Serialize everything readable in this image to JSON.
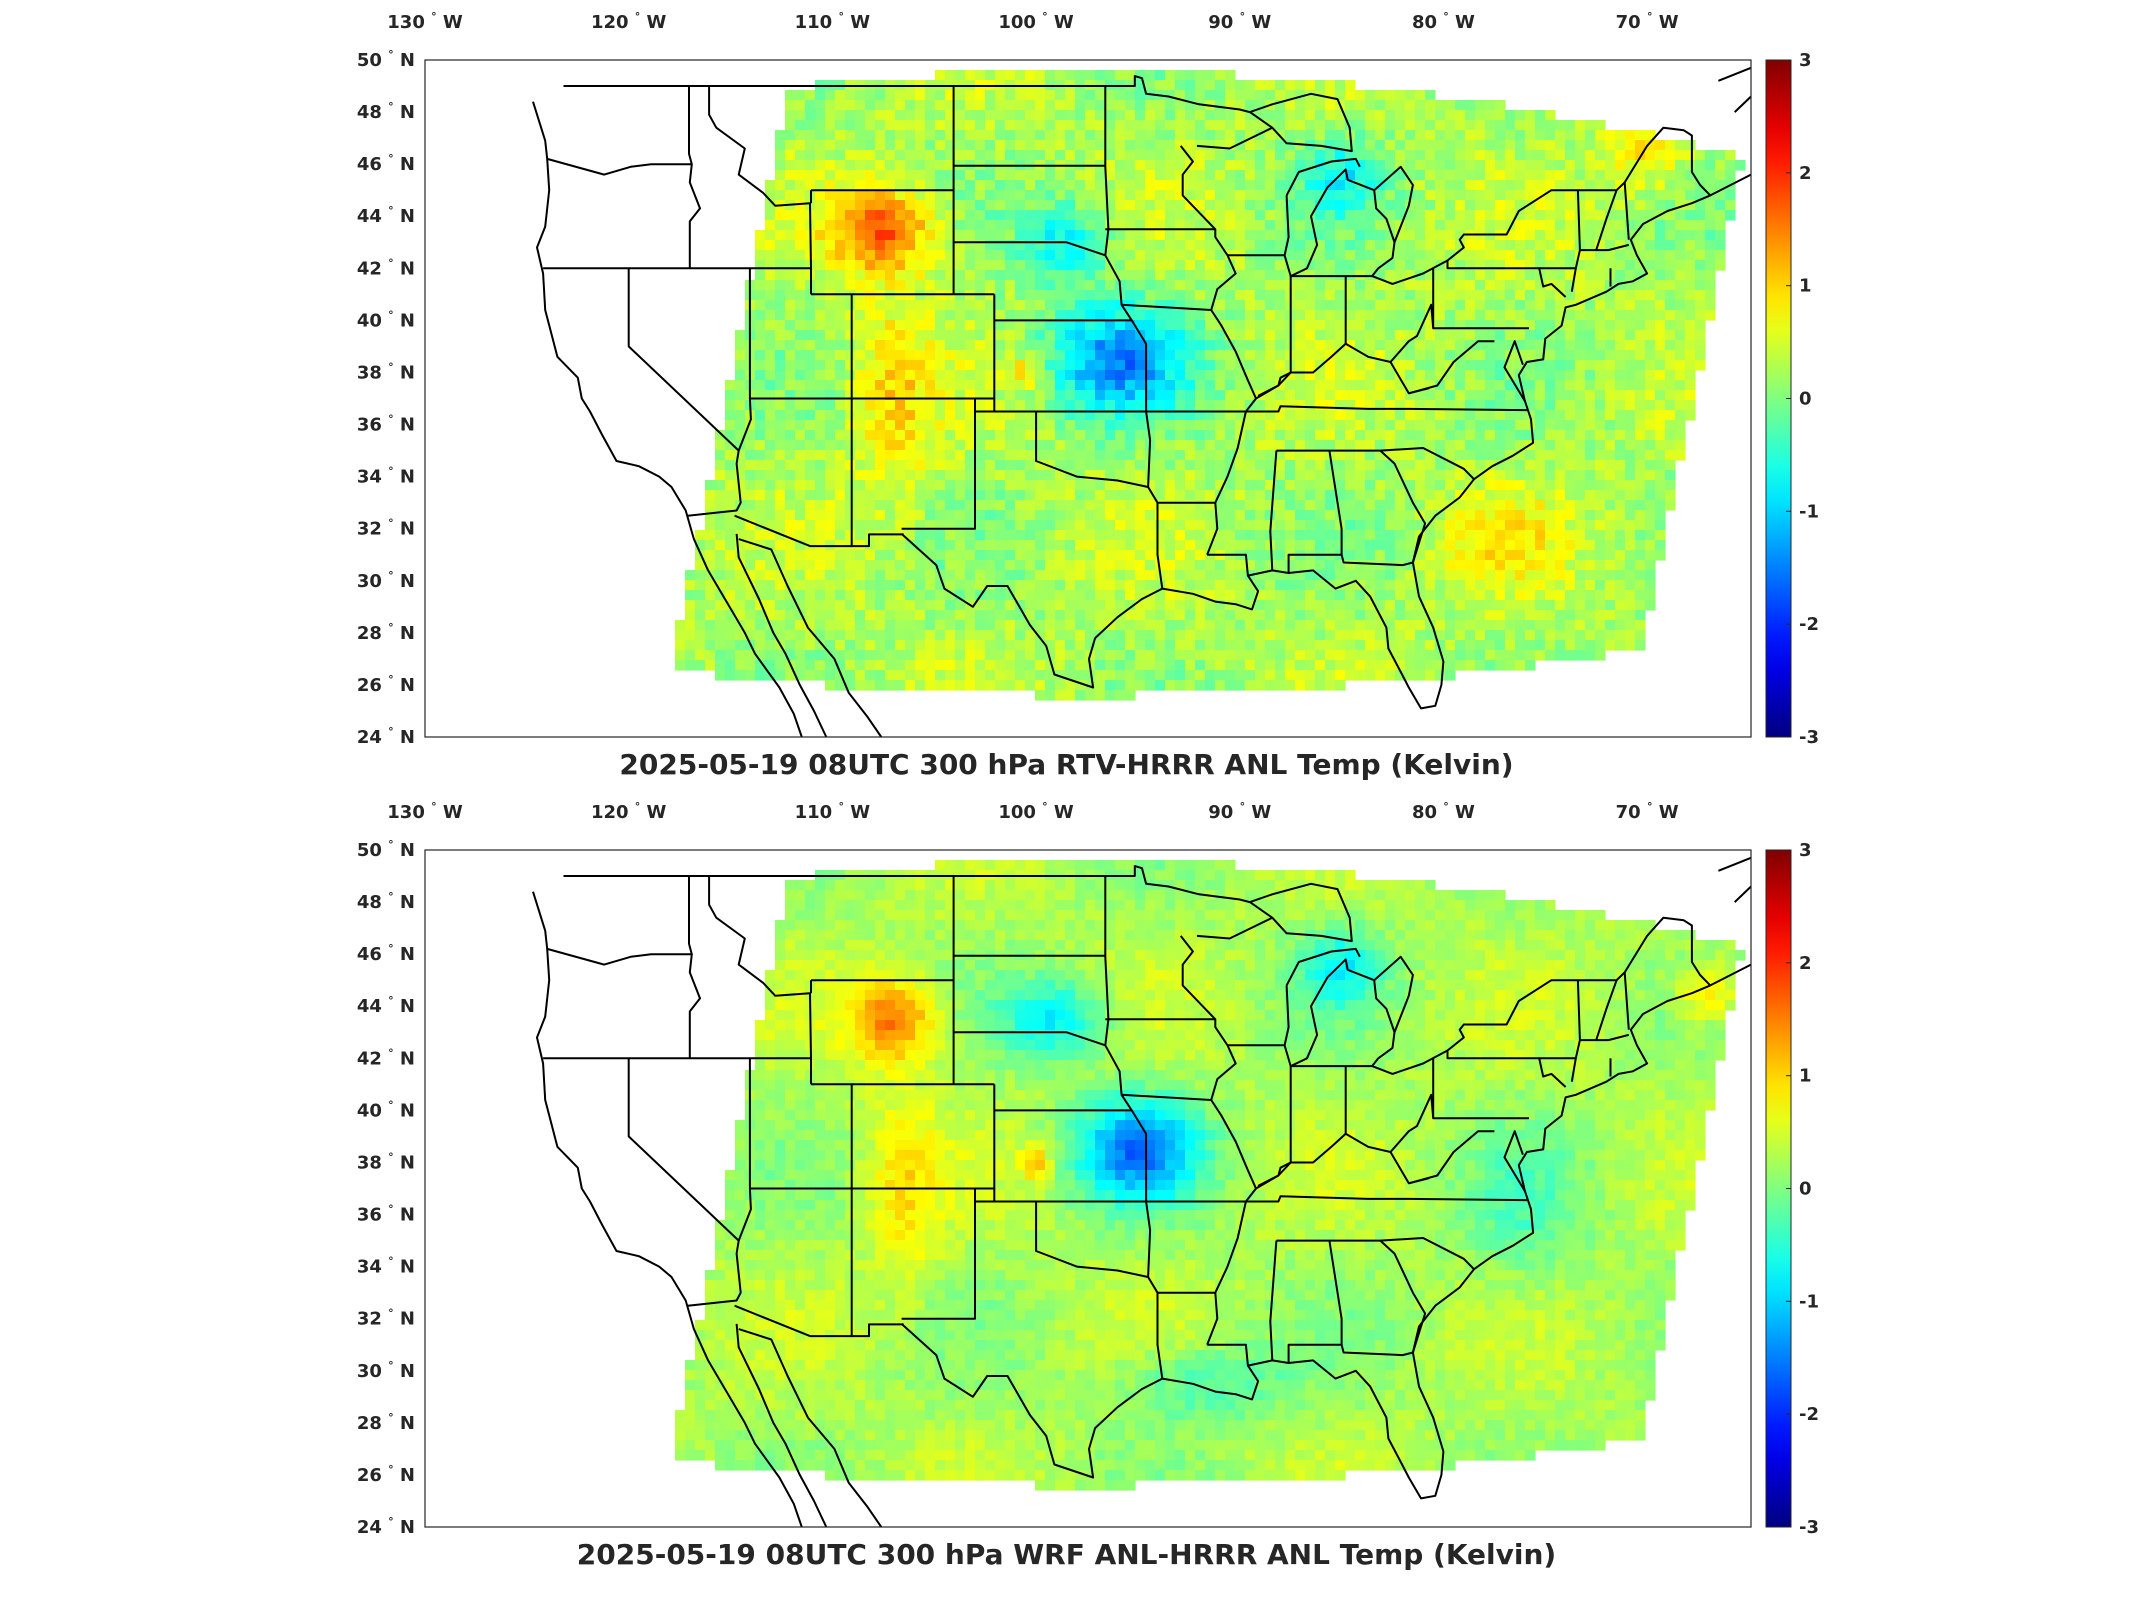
{
  "panels": [
    {
      "title": "2025-05-19 08UTC 300 hPa RTV-HRRR ANL Temp (Kelvin)",
      "pattern": "rtv"
    },
    {
      "title": "2025-05-19 08UTC 300 hPa WRF ANL-HRRR ANL Temp (Kelvin)",
      "pattern": "wrf"
    }
  ],
  "map": {
    "lon_range": [
      -130,
      -64.9
    ],
    "lat_range": [
      24,
      50
    ],
    "lon_ticks": [
      {
        "num": "130",
        "hemi": "W"
      },
      {
        "num": "120",
        "hemi": "W"
      },
      {
        "num": "110",
        "hemi": "W"
      },
      {
        "num": "100",
        "hemi": "W"
      },
      {
        "num": "90",
        "hemi": "W"
      },
      {
        "num": "80",
        "hemi": "W"
      },
      {
        "num": "70",
        "hemi": "W"
      }
    ],
    "lat_ticks": [
      {
        "num": "50",
        "hemi": "N"
      },
      {
        "num": "48",
        "hemi": "N"
      },
      {
        "num": "46",
        "hemi": "N"
      },
      {
        "num": "44",
        "hemi": "N"
      },
      {
        "num": "42",
        "hemi": "N"
      },
      {
        "num": "40",
        "hemi": "N"
      },
      {
        "num": "38",
        "hemi": "N"
      },
      {
        "num": "36",
        "hemi": "N"
      },
      {
        "num": "34",
        "hemi": "N"
      },
      {
        "num": "32",
        "hemi": "N"
      },
      {
        "num": "30",
        "hemi": "N"
      },
      {
        "num": "28",
        "hemi": "N"
      },
      {
        "num": "26",
        "hemi": "N"
      },
      {
        "num": "24",
        "hemi": "N"
      }
    ],
    "degree_symbol": "°"
  },
  "colorbar": {
    "colormap": "jet",
    "range": [
      -3,
      3
    ],
    "ticks": [
      "3",
      "2",
      "1",
      "0",
      "-1",
      "-2",
      "-3"
    ]
  },
  "colors": {
    "border_lines": "#000000",
    "axes_frame": "#262626",
    "text": "#262626"
  }
}
